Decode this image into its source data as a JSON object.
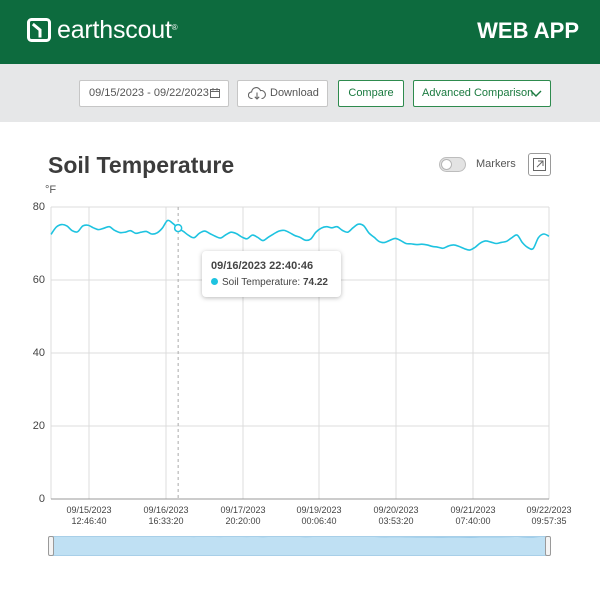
{
  "header": {
    "brand": "earthscout",
    "trademark": "®",
    "app_label": "WEB APP",
    "colors": {
      "bar": "#0d6b3e",
      "text": "#ffffff"
    }
  },
  "toolbar": {
    "date_range": "09/15/2023 - 09/22/2023",
    "download_label": "Download",
    "compare_label": "Compare",
    "advanced_label": "Advanced Comparison",
    "icons": [
      "calendar-icon",
      "cloud-download-icon",
      "chevron-down-icon"
    ]
  },
  "chart_header": {
    "title": "Soil Temperature",
    "markers_label": "Markers",
    "markers_on": false
  },
  "tooltip": {
    "timestamp": "09/16/2023  22:40:46",
    "series_label": "Soil Temperature: ",
    "value": "74.22"
  },
  "chart_data": {
    "type": "line",
    "title": "Soil Temperature",
    "ylabel": "°F",
    "ylim": [
      0,
      80
    ],
    "yticks": [
      "80",
      "60",
      "40",
      "20",
      "0"
    ],
    "grid": true,
    "series_color": "#1ec3e0",
    "x_ticks": [
      {
        "date": "09/15/2023",
        "time": "12:46:40"
      },
      {
        "date": "09/16/2023",
        "time": "16:33:20"
      },
      {
        "date": "09/17/2023",
        "time": "20:20:00"
      },
      {
        "date": "09/19/2023",
        "time": "00:06:40"
      },
      {
        "date": "09/20/2023",
        "time": "03:53:20"
      },
      {
        "date": "09/21/2023",
        "time": "07:40:00"
      },
      {
        "date": "09/22/2023",
        "time": "09:57:35"
      }
    ],
    "series": [
      {
        "values": [
          72.5,
          74.5,
          75.2,
          74.8,
          73.5,
          73.2,
          74.8,
          75.0,
          74.3,
          73.8,
          74.2,
          74.6,
          73.6,
          73.0,
          73.1,
          73.5,
          72.8,
          73.1,
          73.3,
          72.6,
          72.9,
          74.2,
          76.3,
          75.5,
          74.22,
          73.3,
          72.2,
          71.6,
          72.8,
          73.4,
          72.7,
          72.0,
          71.5,
          72.4,
          73.1,
          72.7,
          71.8,
          71.3,
          72.3,
          71.7,
          70.8,
          71.7,
          72.6,
          73.4,
          73.6,
          73.0,
          72.2,
          71.7,
          70.9,
          71.2,
          73.1,
          74.2,
          74.6,
          74.3,
          74.6,
          73.6,
          73.1,
          74.3,
          75.3,
          74.9,
          72.9,
          71.7,
          70.5,
          70.3,
          70.9,
          71.4,
          70.8,
          70.0,
          69.9,
          69.7,
          69.8,
          69.6,
          69.2,
          69.0,
          68.7,
          69.3,
          69.6,
          69.2,
          68.6,
          68.2,
          68.9,
          70.1,
          70.7,
          70.4,
          70.0,
          70.3,
          70.6,
          71.6,
          72.3,
          70.2,
          68.9,
          68.6,
          71.6,
          72.6,
          72.0
        ]
      }
    ],
    "tooltip_index": 24
  }
}
